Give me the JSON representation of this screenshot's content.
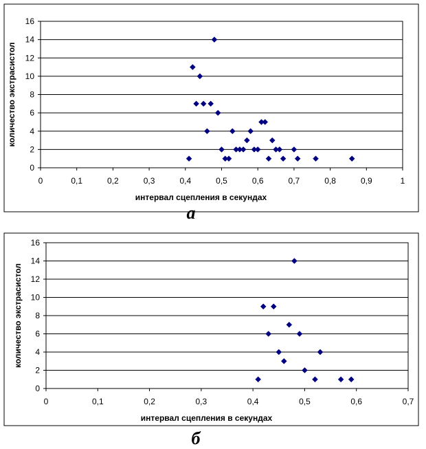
{
  "chart_data": [
    {
      "type": "scatter",
      "panel_label": "а",
      "xlabel": "интервал сцепления в секундах",
      "ylabel": "количество экстрасистол",
      "xlim": [
        0,
        1
      ],
      "ylim": [
        0,
        16
      ],
      "x_ticks": [
        "0",
        "0,1",
        "0,2",
        "0,3",
        "0,4",
        "0,5",
        "0,6",
        "0,7",
        "0,8",
        "0,9",
        "1"
      ],
      "y_ticks": [
        "0",
        "2",
        "4",
        "6",
        "8",
        "10",
        "12",
        "14",
        "16"
      ],
      "grid": true,
      "marker_color": "#000080",
      "points": [
        {
          "x": 0.41,
          "y": 1
        },
        {
          "x": 0.42,
          "y": 11
        },
        {
          "x": 0.43,
          "y": 7
        },
        {
          "x": 0.44,
          "y": 10
        },
        {
          "x": 0.45,
          "y": 7
        },
        {
          "x": 0.46,
          "y": 4
        },
        {
          "x": 0.47,
          "y": 7
        },
        {
          "x": 0.48,
          "y": 14
        },
        {
          "x": 0.49,
          "y": 6
        },
        {
          "x": 0.5,
          "y": 2
        },
        {
          "x": 0.51,
          "y": 1
        },
        {
          "x": 0.52,
          "y": 1
        },
        {
          "x": 0.53,
          "y": 4
        },
        {
          "x": 0.54,
          "y": 2
        },
        {
          "x": 0.55,
          "y": 2
        },
        {
          "x": 0.56,
          "y": 2
        },
        {
          "x": 0.57,
          "y": 3
        },
        {
          "x": 0.58,
          "y": 4
        },
        {
          "x": 0.59,
          "y": 2
        },
        {
          "x": 0.6,
          "y": 2
        },
        {
          "x": 0.61,
          "y": 5
        },
        {
          "x": 0.62,
          "y": 5
        },
        {
          "x": 0.63,
          "y": 1
        },
        {
          "x": 0.64,
          "y": 3
        },
        {
          "x": 0.65,
          "y": 2
        },
        {
          "x": 0.66,
          "y": 2
        },
        {
          "x": 0.67,
          "y": 1
        },
        {
          "x": 0.7,
          "y": 2
        },
        {
          "x": 0.71,
          "y": 1
        },
        {
          "x": 0.76,
          "y": 1
        },
        {
          "x": 0.86,
          "y": 1
        }
      ]
    },
    {
      "type": "scatter",
      "panel_label": "б",
      "xlabel": "интервал сцепления в секундах",
      "ylabel": "количество экстрасистол",
      "xlim": [
        0,
        0.7
      ],
      "ylim": [
        0,
        16
      ],
      "x_ticks": [
        "0",
        "0,1",
        "0,2",
        "0,3",
        "0,4",
        "0,5",
        "0,6",
        "0,7"
      ],
      "y_ticks": [
        "0",
        "2",
        "4",
        "6",
        "8",
        "10",
        "12",
        "14",
        "16"
      ],
      "grid": true,
      "marker_color": "#000080",
      "points": [
        {
          "x": 0.41,
          "y": 1
        },
        {
          "x": 0.42,
          "y": 9
        },
        {
          "x": 0.43,
          "y": 6
        },
        {
          "x": 0.44,
          "y": 9
        },
        {
          "x": 0.45,
          "y": 4
        },
        {
          "x": 0.46,
          "y": 3
        },
        {
          "x": 0.47,
          "y": 7
        },
        {
          "x": 0.48,
          "y": 14
        },
        {
          "x": 0.49,
          "y": 6
        },
        {
          "x": 0.5,
          "y": 2
        },
        {
          "x": 0.52,
          "y": 1
        },
        {
          "x": 0.53,
          "y": 4
        },
        {
          "x": 0.57,
          "y": 1
        },
        {
          "x": 0.59,
          "y": 1
        }
      ]
    }
  ]
}
